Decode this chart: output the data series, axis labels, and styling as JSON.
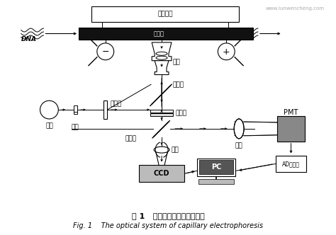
{
  "title_cn": "图 1   毛细管电泳光学检测系统",
  "title_en": "Fig. 1    The optical system of capillary electrophoresis",
  "watermark": "www.lunwencheng.com",
  "bg_color": "#ffffff",
  "line_color": "#000000",
  "gray_color": "#888888",
  "light_gray": "#bbbbbb",
  "labels": {
    "gaoya": "高压电源",
    "xijiguan": "毛细管",
    "DNA": "DNA",
    "wujing": "物镜",
    "lvguangpian": "滤光片",
    "fensejing": "分色镜",
    "banguangpian": "波光片",
    "banfanjing": "半反镜",
    "tou1": "透镜",
    "tou2": "透镜",
    "CCD": "CCD",
    "PC": "PC",
    "PMT": "PMT",
    "ADconv": "AD转换器",
    "guanglian": "光阑",
    "hydeng": "汞灯"
  }
}
